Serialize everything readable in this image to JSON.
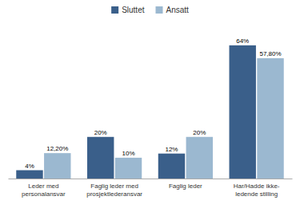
{
  "chart_data": {
    "type": "bar",
    "categories": [
      "Leder med\npersonalansvar",
      "Faglig leder med\nprosjektlederansvar",
      "Faglig leder",
      "Har/Hadde ikke-\nledende stilling"
    ],
    "series": [
      {
        "name": "Sluttet",
        "color": "#3A5F8A",
        "values": [
          4,
          20,
          12,
          64
        ],
        "value_labels": [
          "4%",
          "20%",
          "12%",
          "64%"
        ]
      },
      {
        "name": "Ansatt",
        "color": "#9BB8D0",
        "values": [
          12.2,
          10,
          20,
          57.8
        ],
        "value_labels": [
          "12,20%",
          "10%",
          "20%",
          "57,80%"
        ]
      }
    ],
    "ylim": [
      0,
      72
    ],
    "data_labels": true,
    "tick_labels": "x",
    "grid": false,
    "legend": "top"
  }
}
